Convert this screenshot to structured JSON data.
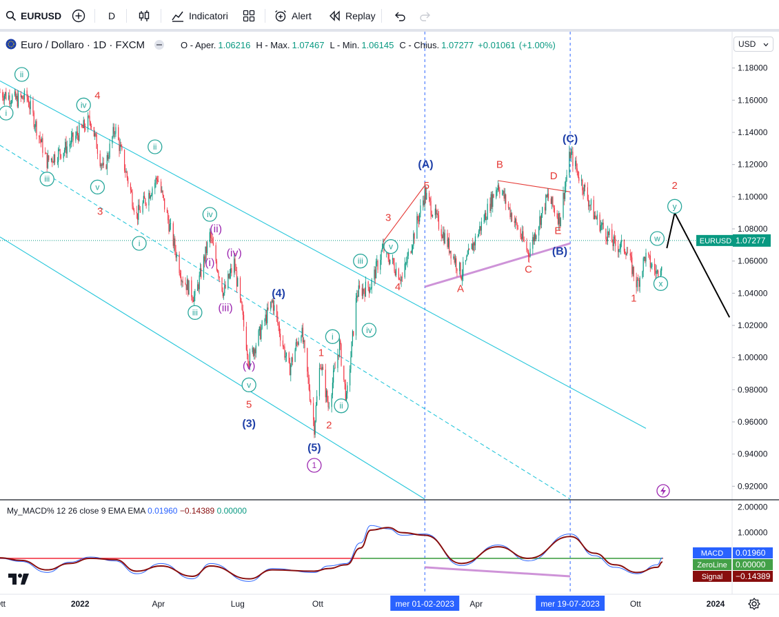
{
  "toolbar": {
    "symbol": "EURUSD",
    "interval": "D",
    "indicators_label": "Indicatori",
    "alert_label": "Alert",
    "replay_label": "Replay"
  },
  "legend": {
    "title": "Euro / Dollaro · 1D · FXCM",
    "open_label": "O - Aper.",
    "open": "1.06216",
    "high_label": "H - Max.",
    "high": "1.07467",
    "low_label": "L - Min.",
    "low": "1.06145",
    "close_label": "C - Chius.",
    "close": "1.07277",
    "change": "+0.01061",
    "change_pct": "(+1.00%)"
  },
  "currency": "USD",
  "price_badge": {
    "label": "EURUSD",
    "value": "1.07277",
    "color": "#089981"
  },
  "macd_legend": {
    "name": "My_MACD% 12 26 close 9 EMA EMA",
    "v1": "0.01960",
    "v2": "−0.14389",
    "v3": "0.00000"
  },
  "macd_badges": [
    {
      "label": "MACD",
      "value": "0.01960",
      "color": "#2962ff"
    },
    {
      "label": "ZeroLine",
      "value": "0.00000",
      "color": "#43a047"
    },
    {
      "label": "Signal",
      "value": "−0.14389",
      "color": "#880e0e"
    }
  ],
  "chart_data": {
    "type": "candlestick",
    "symbol": "EURUSD",
    "price_axis": {
      "ticks": [
        "1.18000",
        "1.16000",
        "1.14000",
        "1.12000",
        "1.10000",
        "1.08000",
        "1.06000",
        "1.04000",
        "1.02000",
        "1.00000",
        "0.98000",
        "0.96000",
        "0.94000",
        "0.92000"
      ],
      "range": [
        0.912,
        1.188
      ]
    },
    "macd_axis": {
      "ticks": [
        "2.00000",
        "1.00000"
      ],
      "range": [
        -1.4,
        2.2
      ]
    },
    "time_axis": {
      "ticks": [
        "Ott",
        "2022",
        "Apr",
        "Lug",
        "Ott",
        "Apr",
        "Ott",
        "2024"
      ],
      "highlighted": [
        "mer 01-02-2023",
        "mer 19-07-2023"
      ],
      "range": [
        "2021-10-01",
        "2024-01-20"
      ]
    },
    "price_path": [
      [
        "2021-10-01",
        1.165
      ],
      [
        "2021-10-20",
        1.16
      ],
      [
        "2021-11-01",
        1.162
      ],
      [
        "2021-11-24",
        1.122
      ],
      [
        "2021-12-15",
        1.13
      ],
      [
        "2022-01-13",
        1.148
      ],
      [
        "2022-01-28",
        1.115
      ],
      [
        "2022-02-10",
        1.143
      ],
      [
        "2022-03-07",
        1.088
      ],
      [
        "2022-03-31",
        1.112
      ],
      [
        "2022-04-28",
        1.05
      ],
      [
        "2022-05-13",
        1.037
      ],
      [
        "2022-05-30",
        1.076
      ],
      [
        "2022-06-15",
        1.04
      ],
      [
        "2022-06-27",
        1.059
      ],
      [
        "2022-07-14",
        0.998
      ],
      [
        "2022-08-10",
        1.035
      ],
      [
        "2022-08-29",
        0.992
      ],
      [
        "2022-09-12",
        1.018
      ],
      [
        "2022-09-27",
        0.957
      ],
      [
        "2022-10-04",
        0.998
      ],
      [
        "2022-10-13",
        0.97
      ],
      [
        "2022-10-26",
        1.008
      ],
      [
        "2022-11-03",
        0.973
      ],
      [
        "2022-11-15",
        1.04
      ],
      [
        "2022-12-01",
        1.045
      ],
      [
        "2022-12-15",
        1.068
      ],
      [
        "2023-01-06",
        1.049
      ],
      [
        "2023-02-01",
        1.102
      ],
      [
        "2023-03-15",
        1.052
      ],
      [
        "2023-04-26",
        1.108
      ],
      [
        "2023-05-31",
        1.065
      ],
      [
        "2023-06-22",
        1.1
      ],
      [
        "2023-07-06",
        1.086
      ],
      [
        "2023-07-18",
        1.127
      ],
      [
        "2023-08-15",
        1.088
      ],
      [
        "2023-09-07",
        1.07
      ],
      [
        "2023-09-20",
        1.068
      ],
      [
        "2023-10-03",
        1.045
      ],
      [
        "2023-10-12",
        1.063
      ],
      [
        "2023-10-26",
        1.052
      ],
      [
        "2023-11-01",
        1.062
      ]
    ],
    "projection": [
      [
        "2023-11-06",
        1.068
      ],
      [
        "2023-11-15",
        1.09
      ],
      [
        "2024-01-17",
        1.025
      ]
    ],
    "channel_lines": [
      {
        "style": "solid",
        "from": [
          "2021-10-01",
          1.172
        ],
        "to": [
          "2023-10-13",
          0.956
        ]
      },
      {
        "style": "solid",
        "from": [
          "2021-10-01",
          1.075
        ],
        "to": [
          "2023-02-01",
          0.912
        ]
      },
      {
        "style": "dashed",
        "from": [
          "2021-10-01",
          1.132
        ],
        "to": [
          "2023-07-18",
          0.912
        ]
      }
    ],
    "trend_lines": [
      {
        "color": "#e53935",
        "from": [
          "2022-12-15",
          1.072
        ],
        "to": [
          "2023-02-01",
          1.107
        ]
      },
      {
        "color": "#e53935",
        "from": [
          "2023-04-26",
          1.11
        ],
        "to": [
          "2023-07-18",
          1.103
        ]
      },
      {
        "color": "#ce93d8",
        "from": [
          "2023-02-01",
          1.044
        ],
        "to": [
          "2023-07-18",
          1.071
        ]
      }
    ],
    "wave_labels": [
      {
        "text": "ii",
        "date": "2021-10-26",
        "price": 1.176,
        "style": "circle",
        "color": "#26a69a"
      },
      {
        "text": "i",
        "date": "2021-10-08",
        "price": 1.152,
        "style": "circle",
        "color": "#26a69a"
      },
      {
        "text": "iv",
        "date": "2022-01-05",
        "price": 1.157,
        "style": "circle",
        "color": "#26a69a"
      },
      {
        "text": "4",
        "date": "2022-01-21",
        "price": 1.163,
        "style": "plain",
        "color": "#e53935"
      },
      {
        "text": "iii",
        "date": "2021-11-24",
        "price": 1.111,
        "style": "circle",
        "color": "#26a69a"
      },
      {
        "text": "v",
        "date": "2022-01-21",
        "price": 1.106,
        "style": "circle",
        "color": "#26a69a"
      },
      {
        "text": "ii",
        "date": "2022-03-28",
        "price": 1.131,
        "style": "circle",
        "color": "#26a69a"
      },
      {
        "text": "3",
        "date": "2022-01-24",
        "price": 1.091,
        "style": "plain",
        "color": "#e53935"
      },
      {
        "text": "i",
        "date": "2022-03-10",
        "price": 1.071,
        "style": "circle",
        "color": "#26a69a"
      },
      {
        "text": "iv",
        "date": "2022-05-30",
        "price": 1.089,
        "style": "circle",
        "color": "#26a69a"
      },
      {
        "text": "(ii)",
        "date": "2022-06-06",
        "price": 1.08,
        "style": "plain",
        "color": "#9c27b0"
      },
      {
        "text": "(i)",
        "date": "2022-05-30",
        "price": 1.059,
        "style": "plain",
        "color": "#9c27b0"
      },
      {
        "text": "(iv)",
        "date": "2022-06-27",
        "price": 1.065,
        "style": "plain",
        "color": "#9c27b0"
      },
      {
        "text": "iii",
        "date": "2022-05-13",
        "price": 1.028,
        "style": "circle",
        "color": "#26a69a"
      },
      {
        "text": "(iii)",
        "date": "2022-06-17",
        "price": 1.031,
        "style": "plain",
        "color": "#9c27b0"
      },
      {
        "text": "(4)",
        "date": "2022-08-17",
        "price": 1.04,
        "style": "plain",
        "color": "#1e3fa8"
      },
      {
        "text": "(v)",
        "date": "2022-07-14",
        "price": 0.995,
        "style": "plain",
        "color": "#9c27b0"
      },
      {
        "text": "v",
        "date": "2022-07-14",
        "price": 0.983,
        "style": "circle",
        "color": "#26a69a"
      },
      {
        "text": "5",
        "date": "2022-07-14",
        "price": 0.971,
        "style": "plain",
        "color": "#e53935"
      },
      {
        "text": "(3)",
        "date": "2022-07-14",
        "price": 0.959,
        "style": "plain",
        "color": "#1e3fa8"
      },
      {
        "text": "1",
        "date": "2022-10-05",
        "price": 1.003,
        "style": "plain",
        "color": "#e53935"
      },
      {
        "text": "i",
        "date": "2022-10-18",
        "price": 1.013,
        "style": "circle",
        "color": "#26a69a"
      },
      {
        "text": "2",
        "date": "2022-10-14",
        "price": 0.958,
        "style": "plain",
        "color": "#e53935"
      },
      {
        "text": "ii",
        "date": "2022-10-28",
        "price": 0.97,
        "style": "circle",
        "color": "#26a69a"
      },
      {
        "text": "(5)",
        "date": "2022-09-27",
        "price": 0.944,
        "style": "plain",
        "color": "#1e3fa8"
      },
      {
        "text": "1",
        "date": "2022-09-27",
        "price": 0.933,
        "style": "circle",
        "color": "#9c27b0"
      },
      {
        "text": "iii",
        "date": "2022-11-19",
        "price": 1.06,
        "style": "circle",
        "color": "#26a69a"
      },
      {
        "text": "iv",
        "date": "2022-11-29",
        "price": 1.017,
        "style": "circle",
        "color": "#26a69a"
      },
      {
        "text": "3",
        "date": "2022-12-21",
        "price": 1.087,
        "style": "plain",
        "color": "#e53935"
      },
      {
        "text": "v",
        "date": "2022-12-24",
        "price": 1.069,
        "style": "circle",
        "color": "#26a69a"
      },
      {
        "text": "4",
        "date": "2023-01-01",
        "price": 1.044,
        "style": "plain",
        "color": "#e53935"
      },
      {
        "text": "(A)",
        "date": "2023-02-02",
        "price": 1.12,
        "style": "plain",
        "color": "#1e3fa8"
      },
      {
        "text": "5",
        "date": "2023-02-03",
        "price": 1.107,
        "style": "plain",
        "color": "#e53935"
      },
      {
        "text": "A",
        "date": "2023-03-14",
        "price": 1.043,
        "style": "plain",
        "color": "#e53935"
      },
      {
        "text": "B",
        "date": "2023-04-28",
        "price": 1.12,
        "style": "plain",
        "color": "#e53935"
      },
      {
        "text": "C",
        "date": "2023-05-31",
        "price": 1.055,
        "style": "plain",
        "color": "#e53935"
      },
      {
        "text": "D",
        "date": "2023-06-29",
        "price": 1.113,
        "style": "plain",
        "color": "#e53935"
      },
      {
        "text": "E",
        "date": "2023-07-04",
        "price": 1.079,
        "style": "plain",
        "color": "#e53935"
      },
      {
        "text": "(B)",
        "date": "2023-07-06",
        "price": 1.066,
        "style": "plain",
        "color": "#1e3fa8"
      },
      {
        "text": "(C)",
        "date": "2023-07-18",
        "price": 1.136,
        "style": "plain",
        "color": "#1e3fa8"
      },
      {
        "text": "2",
        "date": "2023-11-15",
        "price": 1.107,
        "style": "plain",
        "color": "#e53935"
      },
      {
        "text": "y",
        "date": "2023-11-15",
        "price": 1.094,
        "style": "circle",
        "color": "#26a69a"
      },
      {
        "text": "w",
        "date": "2023-10-26",
        "price": 1.074,
        "style": "circle",
        "color": "#26a69a"
      },
      {
        "text": "x",
        "date": "2023-10-30",
        "price": 1.046,
        "style": "circle",
        "color": "#26a69a"
      },
      {
        "text": "1",
        "date": "2023-09-29",
        "price": 1.037,
        "style": "plain",
        "color": "#e53935"
      }
    ],
    "macd": {
      "macd_path": [
        [
          "2021-10-01",
          0.0
        ],
        [
          "2021-10-25",
          -0.12
        ],
        [
          "2021-11-24",
          -0.55
        ],
        [
          "2021-12-20",
          -0.15
        ],
        [
          "2022-01-13",
          0.05
        ],
        [
          "2022-02-10",
          -0.1
        ],
        [
          "2022-03-07",
          -0.6
        ],
        [
          "2022-04-04",
          -0.2
        ],
        [
          "2022-05-10",
          -0.8
        ],
        [
          "2022-05-31",
          -0.2
        ],
        [
          "2022-07-14",
          -0.9
        ],
        [
          "2022-08-10",
          -0.4
        ],
        [
          "2022-09-27",
          -0.55
        ],
        [
          "2022-10-13",
          -0.3
        ],
        [
          "2022-11-03",
          -0.2
        ],
        [
          "2022-11-19",
          0.6
        ],
        [
          "2022-12-01",
          1.28
        ],
        [
          "2022-12-21",
          1.15
        ],
        [
          "2023-01-06",
          0.9
        ],
        [
          "2023-02-01",
          0.95
        ],
        [
          "2023-03-15",
          -0.28
        ],
        [
          "2023-04-26",
          0.52
        ],
        [
          "2023-05-31",
          -0.1
        ],
        [
          "2023-07-18",
          0.95
        ],
        [
          "2023-08-15",
          0.1
        ],
        [
          "2023-09-07",
          -0.35
        ],
        [
          "2023-10-03",
          -0.6
        ],
        [
          "2023-10-26",
          -0.25
        ],
        [
          "2023-11-01",
          0.02
        ]
      ],
      "signal_path": [
        [
          "2021-10-01",
          0.02
        ],
        [
          "2021-10-25",
          -0.08
        ],
        [
          "2021-11-24",
          -0.45
        ],
        [
          "2021-12-20",
          -0.2
        ],
        [
          "2022-01-13",
          0.0
        ],
        [
          "2022-02-10",
          -0.05
        ],
        [
          "2022-03-07",
          -0.5
        ],
        [
          "2022-04-04",
          -0.3
        ],
        [
          "2022-05-10",
          -0.7
        ],
        [
          "2022-05-31",
          -0.3
        ],
        [
          "2022-07-14",
          -0.8
        ],
        [
          "2022-08-10",
          -0.45
        ],
        [
          "2022-09-27",
          -0.5
        ],
        [
          "2022-10-13",
          -0.4
        ],
        [
          "2022-11-03",
          -0.25
        ],
        [
          "2022-11-19",
          0.4
        ],
        [
          "2022-12-01",
          1.1
        ],
        [
          "2022-12-21",
          1.2
        ],
        [
          "2023-01-06",
          1.0
        ],
        [
          "2023-02-01",
          0.9
        ],
        [
          "2023-03-15",
          -0.2
        ],
        [
          "2023-04-26",
          0.45
        ],
        [
          "2023-05-31",
          0.0
        ],
        [
          "2023-07-18",
          0.85
        ],
        [
          "2023-08-15",
          0.2
        ],
        [
          "2023-09-07",
          -0.25
        ],
        [
          "2023-10-03",
          -0.55
        ],
        [
          "2023-10-26",
          -0.35
        ],
        [
          "2023-11-01",
          -0.14
        ]
      ],
      "zero_line": [
        [
          "2022-11-19",
          0.0
        ],
        [
          "2023-11-01",
          0.0
        ]
      ],
      "red_line": [
        [
          "2021-10-01",
          0.0
        ],
        [
          "2022-11-19",
          0.0
        ]
      ],
      "divergence_line": {
        "from": [
          "2023-02-01",
          -0.35
        ],
        "to": [
          "2023-07-18",
          -0.7
        ]
      }
    }
  }
}
